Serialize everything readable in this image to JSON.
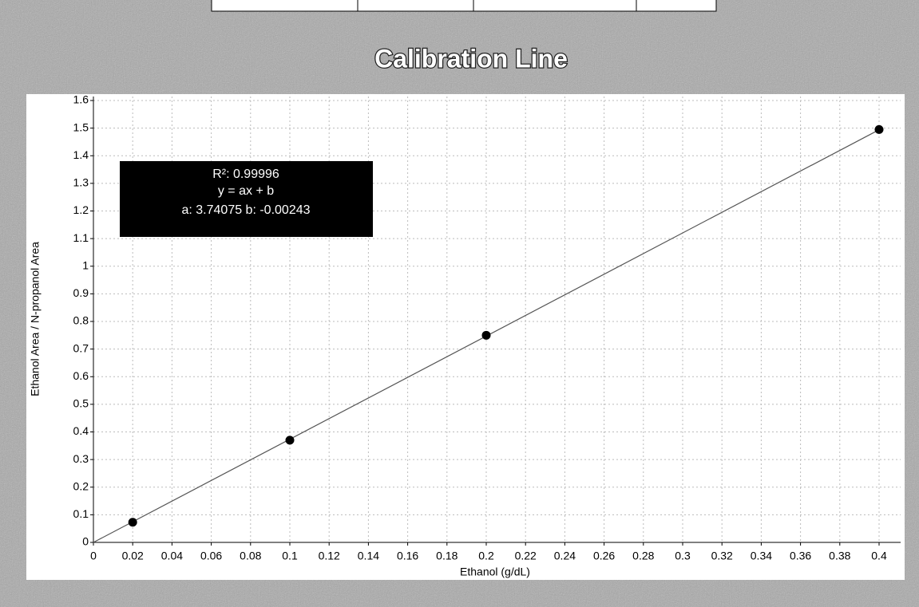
{
  "chart_data": {
    "type": "scatter",
    "title": "Calibration Line",
    "xlabel": "Ethanol (g/dL)",
    "ylabel": "Ethanol Area / N-propanol Area",
    "annotation": [
      "R²: 0.99996",
      "y = ax + b",
      "a: 3.74075 b: -0.00243"
    ],
    "x": [
      0.02,
      0.1,
      0.2,
      0.4
    ],
    "values": [
      0.073,
      0.37,
      0.75,
      1.495
    ],
    "color": "#000000",
    "trendline": {
      "x": [
        0,
        0.4
      ],
      "values": [
        0,
        1.494
      ],
      "color": "#555555"
    },
    "xlim": [
      0,
      0.4
    ],
    "xticks": [
      0,
      0.02,
      0.04,
      0.06,
      0.08,
      0.1,
      0.12,
      0.14,
      0.16,
      0.18,
      0.2,
      0.22,
      0.24,
      0.26,
      0.28,
      0.3,
      0.32,
      0.34,
      0.36,
      0.38,
      0.4
    ],
    "ylim": [
      0,
      1.6
    ],
    "yticks": [
      0,
      0.1,
      0.2,
      0.3,
      0.4,
      0.5,
      0.6,
      0.7,
      0.8,
      0.9,
      1,
      1.1,
      1.2,
      1.3,
      1.4,
      1.5,
      1.6
    ],
    "grid": true
  }
}
